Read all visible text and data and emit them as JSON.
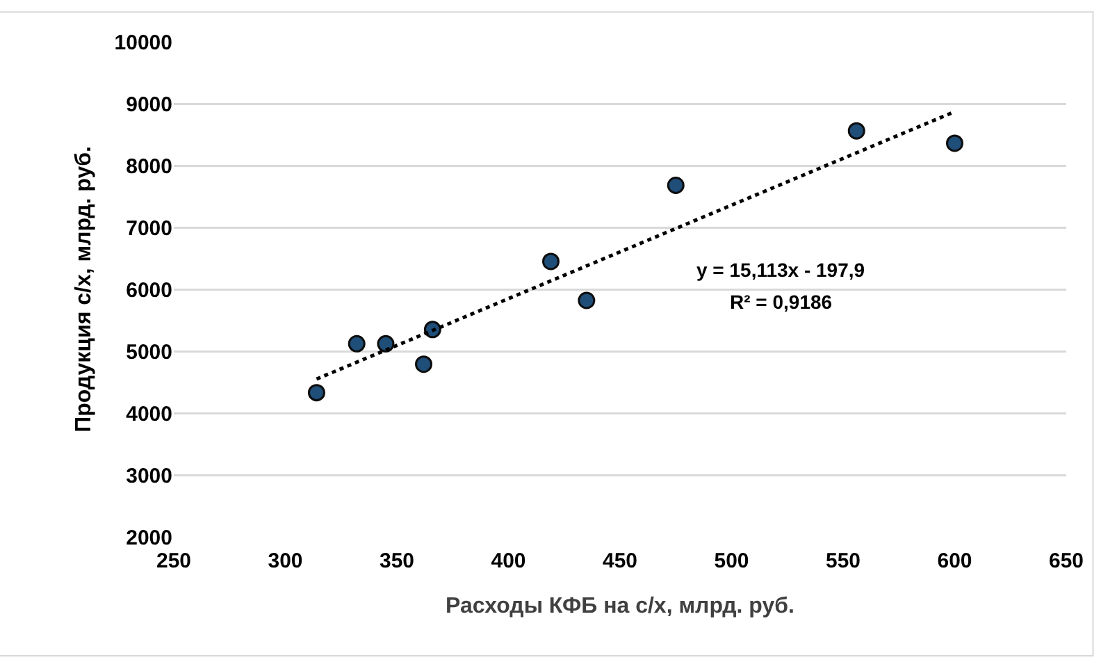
{
  "chart_data": {
    "type": "scatter",
    "xlabel": "Расходы КФБ на с/х, млрд. руб.",
    "ylabel": "Продукция с/х, млрд. руб.",
    "xlim": [
      250,
      650
    ],
    "xticks": [
      250,
      300,
      350,
      400,
      450,
      500,
      550,
      600,
      650
    ],
    "ylim": [
      2000,
      10000
    ],
    "yticks": [
      2000,
      3000,
      4000,
      5000,
      6000,
      7000,
      8000,
      9000,
      10000
    ],
    "grid": "y",
    "marker": "circle",
    "annotations": [
      "y = 15,113x - 197,9",
      "R² = 0,9186"
    ],
    "series": [
      {
        "color": "#1f4e79",
        "x": [
          314,
          332,
          345,
          362,
          366,
          419,
          435,
          475,
          556,
          600
        ],
        "values": [
          4330,
          5120,
          5120,
          4790,
          5350,
          6450,
          5820,
          7680,
          8560,
          8360
        ]
      },
      {
        "type": "line",
        "color": "#000000",
        "line_style": "dotted",
        "marker": "none",
        "x": [
          314,
          600
        ],
        "values": [
          4550,
          8870
        ]
      }
    ]
  }
}
